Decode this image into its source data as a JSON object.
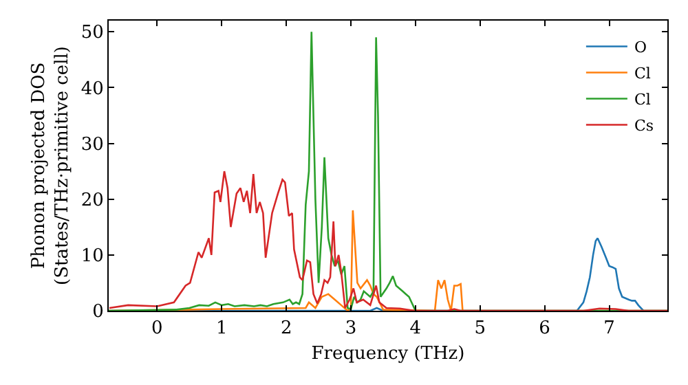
{
  "chart_data": {
    "type": "line",
    "xlabel": "Frequency (THz)",
    "ylabel": "Phonon projected DOS\n(States/THz·primitive cell)",
    "xlim": [
      -0.75,
      7.9
    ],
    "xticks": [
      0,
      1,
      2,
      3,
      4,
      5,
      6,
      7
    ],
    "ylim": [
      0,
      52
    ],
    "yticks": [
      0,
      10,
      20,
      30,
      40,
      50
    ],
    "grid": false,
    "legend": "top right",
    "marker": "none",
    "line_style": "solid",
    "series": [
      {
        "name": "O",
        "color": "#1f77b4",
        "x": [
          -0.75,
          3.3,
          3.4,
          3.5,
          6.5,
          6.6,
          6.65,
          6.7,
          6.75,
          6.79,
          6.82,
          6.88,
          6.95,
          7.0,
          7.05,
          7.1,
          7.15,
          7.2,
          7.3,
          7.35,
          7.4,
          7.45,
          7.53,
          7.9
        ],
        "values": [
          0,
          0,
          0.5,
          0,
          0,
          1.5,
          3.5,
          6,
          10,
          12.5,
          13,
          11.5,
          9.5,
          8,
          7.8,
          7.5,
          4,
          2.5,
          2,
          1.8,
          1.8,
          1,
          0,
          0
        ]
      },
      {
        "name": "Cl",
        "color": "#ff7f0e",
        "x": [
          -0.75,
          0.5,
          1.0,
          2.3,
          2.35,
          2.45,
          2.55,
          2.65,
          2.75,
          2.85,
          2.95,
          3.0,
          3.03,
          3.1,
          3.15,
          3.25,
          3.3,
          3.35,
          3.4,
          3.5,
          4.3,
          4.35,
          4.4,
          4.45,
          4.5,
          4.55,
          4.6,
          4.65,
          4.7,
          4.73,
          7.9
        ],
        "values": [
          0,
          0.2,
          0.3,
          0.5,
          1.5,
          0.5,
          2.5,
          3,
          2,
          1,
          0,
          0.5,
          18,
          5,
          4,
          5.5,
          4.5,
          3,
          2.5,
          0.2,
          0,
          5.5,
          4,
          5.5,
          2,
          0,
          4.5,
          4.5,
          4.8,
          0,
          0
        ]
      },
      {
        "name": "Cl",
        "color": "#2ca02c",
        "x": [
          -0.75,
          0.3,
          0.5,
          0.65,
          0.8,
          0.9,
          1.0,
          1.1,
          1.2,
          1.35,
          1.5,
          1.6,
          1.7,
          1.8,
          1.95,
          2.05,
          2.1,
          2.15,
          2.2,
          2.25,
          2.3,
          2.35,
          2.39,
          2.45,
          2.5,
          2.55,
          2.59,
          2.65,
          2.7,
          2.75,
          2.8,
          2.85,
          2.9,
          2.95,
          3.0,
          3.05,
          3.1,
          3.15,
          3.2,
          3.25,
          3.3,
          3.35,
          3.39,
          3.42,
          3.46,
          3.55,
          3.6,
          3.65,
          3.7,
          3.8,
          3.85,
          3.9,
          4.0,
          7.9
        ],
        "values": [
          0,
          0.2,
          0.5,
          1,
          0.9,
          1.5,
          1,
          1.2,
          0.8,
          1,
          0.8,
          1,
          0.8,
          1.2,
          1.5,
          2,
          1.2,
          1.5,
          1.2,
          3,
          19,
          25,
          50,
          20,
          5,
          15,
          27.5,
          13,
          10,
          8,
          9,
          6.5,
          8,
          0.5,
          0.3,
          2.5,
          1.5,
          2,
          3.5,
          3,
          2.5,
          3.5,
          49,
          35,
          2.5,
          4,
          5,
          6.2,
          4.5,
          3.5,
          3,
          2.5,
          0,
          0
        ]
      },
      {
        "name": "Cs",
        "color": "#d62728",
        "x": [
          -0.74,
          -0.45,
          0,
          0.26,
          0.44,
          0.51,
          0.64,
          0.69,
          0.8,
          0.84,
          0.89,
          0.95,
          0.98,
          1.04,
          1.09,
          1.14,
          1.23,
          1.29,
          1.34,
          1.39,
          1.44,
          1.49,
          1.54,
          1.59,
          1.64,
          1.68,
          1.78,
          1.87,
          1.94,
          1.98,
          2.04,
          2.09,
          2.12,
          2.21,
          2.25,
          2.32,
          2.37,
          2.42,
          2.48,
          2.54,
          2.59,
          2.64,
          2.68,
          2.73,
          2.76,
          2.81,
          2.85,
          2.91,
          2.98,
          3.04,
          3.09,
          3.19,
          3.3,
          3.39,
          3.44,
          3.55,
          3.76,
          3.98,
          4.5,
          4.6,
          4.7,
          6.6,
          6.85,
          7.1,
          7.3,
          7.9
        ],
        "values": [
          0.5,
          1,
          0.8,
          1.5,
          4.5,
          5,
          10.5,
          9.5,
          13,
          10,
          21.2,
          21.5,
          19.5,
          25,
          22,
          15,
          21,
          22,
          19.5,
          21.5,
          17.5,
          24.5,
          17.5,
          19.5,
          17.5,
          9.5,
          17.5,
          21,
          23.5,
          23,
          17,
          17.5,
          11,
          6,
          5.5,
          9,
          8.7,
          3,
          1.3,
          3,
          5.5,
          5,
          6,
          16,
          8,
          10,
          7,
          0.5,
          2,
          4,
          1.5,
          2,
          1,
          4.5,
          1.5,
          0.5,
          0.4,
          0,
          0,
          0.3,
          0,
          0,
          0.4,
          0.3,
          0,
          0
        ]
      }
    ]
  }
}
